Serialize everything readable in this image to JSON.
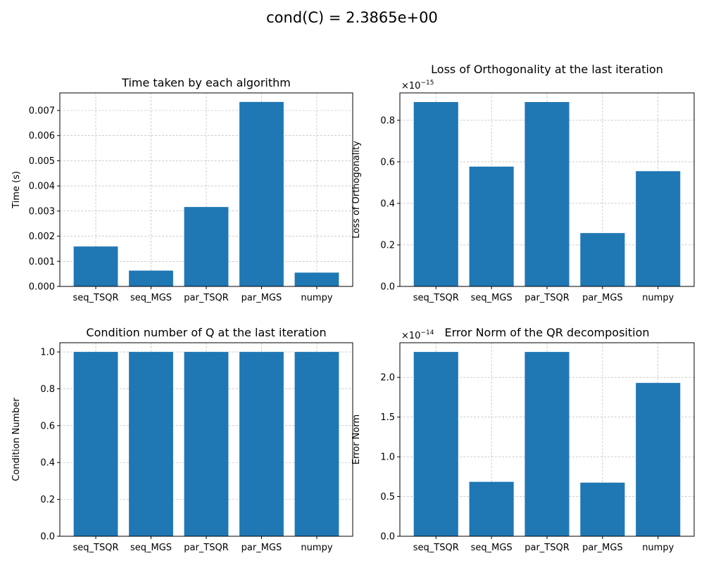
{
  "figure": {
    "suptitle": "cond(C) = 2.3865e+00"
  },
  "colors": {
    "bar": "#1f77b4",
    "grid": "#b0b0b0",
    "axis": "#000000"
  },
  "chart_data": [
    {
      "type": "bar",
      "title": "Time taken by each algorithm",
      "ylabel": "Time (s)",
      "xlabel": "",
      "categories": [
        "seq_TSQR",
        "seq_MGS",
        "par_TSQR",
        "par_MGS",
        "numpy"
      ],
      "values": [
        0.00159,
        0.00063,
        0.00316,
        0.00734,
        0.00055
      ],
      "ylim": [
        0,
        0.0077
      ],
      "yticks": [
        "0.000",
        "0.001",
        "0.002",
        "0.003",
        "0.004",
        "0.005",
        "0.006",
        "0.007"
      ],
      "ytick_values": [
        0,
        0.001,
        0.002,
        0.003,
        0.004,
        0.005,
        0.006,
        0.007
      ],
      "offset_base": "",
      "offset_exp": "",
      "grid": true
    },
    {
      "type": "bar",
      "title": "Loss of Orthogonality at the last iteration",
      "ylabel": "Loss of Orthogonality",
      "xlabel": "",
      "categories": [
        "seq_TSQR",
        "seq_MGS",
        "par_TSQR",
        "par_MGS",
        "numpy"
      ],
      "values": [
        8.88e-16,
        5.77e-16,
        8.88e-16,
        2.57e-16,
        5.55e-16
      ],
      "ylim": [
        0,
        9.32e-16
      ],
      "yticks": [
        "0.0",
        "0.2",
        "0.4",
        "0.6",
        "0.8"
      ],
      "ytick_values": [
        0,
        2e-16,
        4e-16,
        6e-16,
        8e-16
      ],
      "offset_base": "×10",
      "offset_exp": "−15",
      "grid": true
    },
    {
      "type": "bar",
      "title": "Condition number of Q at the last iteration",
      "ylabel": "Condition Number",
      "xlabel": "",
      "categories": [
        "seq_TSQR",
        "seq_MGS",
        "par_TSQR",
        "par_MGS",
        "numpy"
      ],
      "values": [
        1.0,
        1.0,
        1.0,
        1.0,
        1.0
      ],
      "ylim": [
        0,
        1.05
      ],
      "yticks": [
        "0.0",
        "0.2",
        "0.4",
        "0.6",
        "0.8",
        "1.0"
      ],
      "ytick_values": [
        0,
        0.2,
        0.4,
        0.6,
        0.8,
        1.0
      ],
      "offset_base": "",
      "offset_exp": "",
      "grid": true
    },
    {
      "type": "bar",
      "title": "Error Norm of the QR decomposition",
      "ylabel": "Error Norm",
      "xlabel": "",
      "categories": [
        "seq_TSQR",
        "seq_MGS",
        "par_TSQR",
        "par_MGS",
        "numpy"
      ],
      "values": [
        2.32e-14,
        6.85e-15,
        2.32e-14,
        6.75e-15,
        1.93e-14
      ],
      "ylim": [
        0,
        2.436e-14
      ],
      "yticks": [
        "0.0",
        "0.5",
        "1.0",
        "1.5",
        "2.0"
      ],
      "ytick_values": [
        0,
        5e-15,
        1e-14,
        1.5e-14,
        2e-14
      ],
      "offset_base": "×10",
      "offset_exp": "−14",
      "grid": true
    }
  ]
}
